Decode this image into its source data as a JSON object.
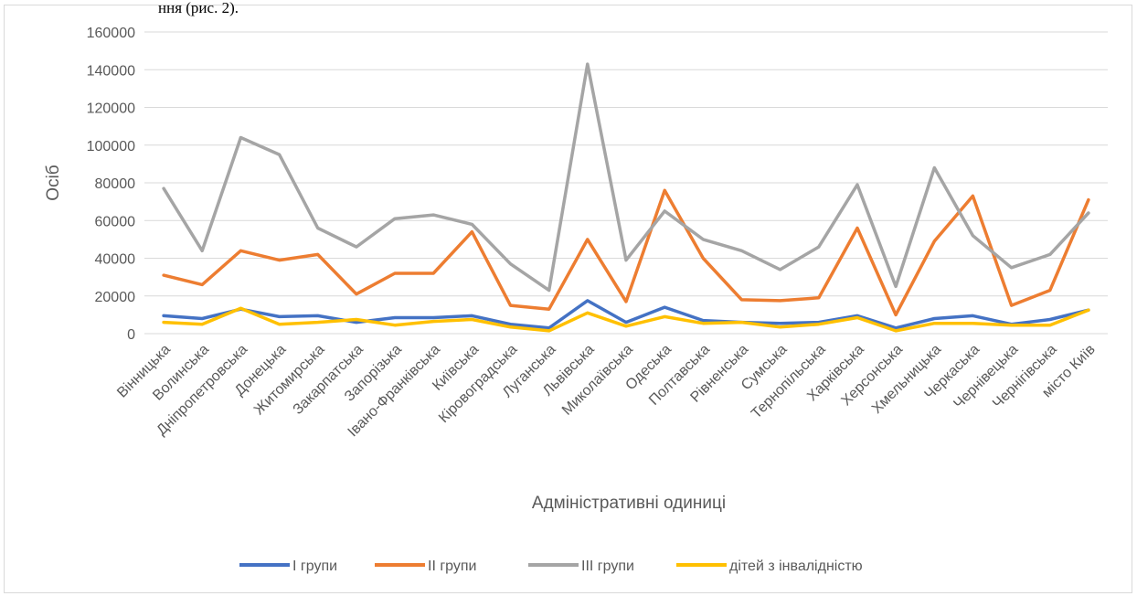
{
  "header_fragment": "ння (рис. 2).",
  "chart_data": {
    "type": "line",
    "xlabel": "Адміністративні одиниці",
    "ylabel": "Осіб",
    "ylim": [
      0,
      160000
    ],
    "yticks": [
      0,
      20000,
      40000,
      60000,
      80000,
      100000,
      120000,
      140000,
      160000
    ],
    "grid": true,
    "legend_position": "bottom",
    "categories": [
      "Вінницька",
      "Волинська",
      "Дніпропетровська",
      "Донецька",
      "Житомирська",
      "Закарпатська",
      "Запорізька",
      "Івано-Франківська",
      "Київська",
      "Кіровоградська",
      "Луганська",
      "Львівська",
      "Миколаївська",
      "Одеська",
      "Полтавська",
      "Рівненська",
      "Сумська",
      "Тернопільська",
      "Харківська",
      "Херсонська",
      "Хмельницька",
      "Черкаська",
      "Чернівецька",
      "Чернігівська",
      "місто Київ"
    ],
    "series": [
      {
        "name": "I групи",
        "color": "#4472c4",
        "values": [
          9500,
          8000,
          13000,
          9000,
          9500,
          6000,
          8500,
          8500,
          9500,
          5000,
          3000,
          17500,
          6000,
          14000,
          7000,
          6000,
          5500,
          6000,
          9500,
          3000,
          8000,
          9500,
          5000,
          7500,
          12500
        ]
      },
      {
        "name": "II групи",
        "color": "#ed7d31",
        "values": [
          31000,
          26000,
          44000,
          39000,
          42000,
          21000,
          32000,
          32000,
          54000,
          15000,
          13000,
          50000,
          17000,
          76000,
          40000,
          18000,
          17500,
          19000,
          56000,
          10000,
          49000,
          73000,
          15000,
          23000,
          71000
        ]
      },
      {
        "name": "III групи",
        "color": "#a5a5a5",
        "values": [
          77000,
          44000,
          104000,
          95000,
          56000,
          46000,
          61000,
          63000,
          58000,
          37000,
          23000,
          143000,
          39000,
          65000,
          50000,
          44000,
          34000,
          46000,
          79000,
          25000,
          88000,
          52000,
          35000,
          42000,
          64000
        ]
      },
      {
        "name": "дітей з інвалідністю",
        "color": "#ffc000",
        "values": [
          6000,
          5000,
          13500,
          5000,
          6000,
          7500,
          4500,
          6500,
          7500,
          3500,
          1500,
          11000,
          4000,
          9000,
          5500,
          6000,
          3500,
          5000,
          8500,
          1500,
          5500,
          5500,
          4500,
          4500,
          12500
        ]
      }
    ]
  }
}
